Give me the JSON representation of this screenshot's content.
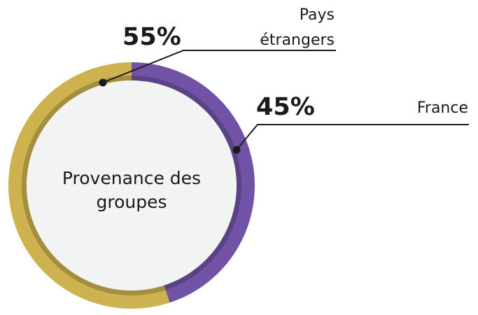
{
  "chart_data": {
    "type": "donut",
    "center_label": "Provenance des groupes",
    "categories": [
      "France",
      "Pays étrangers"
    ],
    "values": [
      45,
      55
    ],
    "value_labels": [
      "45%",
      "55%"
    ],
    "colors": [
      "#7252a6",
      "#cdb24f"
    ]
  }
}
